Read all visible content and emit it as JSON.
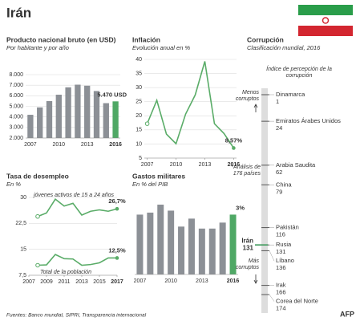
{
  "title": "Irán",
  "source": "Fuentes: Banco mundial, SIPRI, Transparencia internacional",
  "credit": "AFP",
  "chart_data": [
    {
      "type": "bar",
      "title": "Producto nacional bruto (en USD)",
      "subtitle": "Por habitante y por año",
      "categories": [
        "2007",
        null,
        null,
        "2010",
        null,
        null,
        "2013",
        null,
        null,
        "2016"
      ],
      "values": [
        4200,
        4900,
        5500,
        6100,
        6800,
        7050,
        6950,
        6450,
        5300,
        5470
      ],
      "value_labels": [
        null,
        null,
        null,
        null,
        null,
        null,
        null,
        null,
        null,
        "5.470 USD"
      ],
      "colors": [
        "#8c9096",
        "#8c9096",
        "#8c9096",
        "#8c9096",
        "#8c9096",
        "#8c9096",
        "#8c9096",
        "#8c9096",
        "#8c9096",
        "#4fa865"
      ],
      "ylim": [
        2000,
        8000
      ],
      "yticks": [
        {
          "value": 2000,
          "label": "2.000"
        },
        {
          "value": 3000,
          "label": "3.000"
        },
        {
          "value": 4000,
          "label": "4.000"
        },
        {
          "value": 5000,
          "label": "5.000"
        },
        {
          "value": 6000,
          "label": "6.000"
        },
        {
          "value": 7000,
          "label": "7.000"
        },
        {
          "value": 8000,
          "label": "8.000"
        }
      ],
      "grid": true
    },
    {
      "type": "line",
      "title": "Inflación",
      "subtitle": "Evolución anual en %",
      "x": [
        2007,
        2008,
        2009,
        2010,
        2011,
        2012,
        2013,
        2014,
        2015,
        2016
      ],
      "values": [
        17.2,
        25.5,
        13.5,
        10.1,
        20.6,
        27.4,
        39.3,
        17.2,
        13.7,
        8.57
      ],
      "value_labels": [
        null,
        null,
        null,
        null,
        null,
        null,
        null,
        null,
        null,
        "8,57%"
      ],
      "color": "#5aac68",
      "xlim": [
        2006.7,
        2016.3
      ],
      "xticks": [
        2007,
        2010,
        2013,
        2016
      ],
      "ylim": [
        5,
        40
      ],
      "yticks": [
        5,
        10,
        15,
        20,
        25,
        30,
        35,
        40
      ],
      "grid": true
    },
    {
      "type": "line",
      "title": "Tasa de desempleo",
      "subtitle": "En %",
      "x": [
        2008,
        2009,
        2010,
        2011,
        2012,
        2013,
        2014,
        2015,
        2016,
        2017
      ],
      "series": [
        {
          "name": "jóvenes  activos de 15 a 24 años",
          "color": "#5aac68",
          "values": [
            24.5,
            25.5,
            29.5,
            27.5,
            28.3,
            24.9,
            26.0,
            26.4,
            26.0,
            26.7
          ],
          "value_labels": [
            null,
            null,
            null,
            null,
            null,
            null,
            null,
            null,
            null,
            "26,7%"
          ]
        },
        {
          "name": "Total de la población",
          "color": "#5aac68",
          "values": [
            10.4,
            10.5,
            13.5,
            12.3,
            12.2,
            10.4,
            10.6,
            11.1,
            12.5,
            12.5
          ],
          "value_labels": [
            null,
            null,
            null,
            null,
            null,
            null,
            null,
            null,
            null,
            "12,5%"
          ]
        }
      ],
      "xlim": [
        2007,
        2017
      ],
      "xticks": [
        2007,
        2009,
        2011,
        2013,
        2015,
        2017
      ],
      "ylim": [
        7.5,
        30
      ],
      "yticks": [
        {
          "value": 7.5,
          "label": "7,5"
        },
        15,
        {
          "value": 22.5,
          "label": "22,5"
        },
        30
      ],
      "grid": true
    },
    {
      "type": "bar",
      "title": "Gastos militares",
      "subtitle": "En % del PIB",
      "categories": [
        "2007",
        null,
        null,
        "2010",
        null,
        null,
        "2013",
        null,
        null,
        "2016"
      ],
      "values": [
        3.0,
        3.1,
        3.5,
        3.2,
        2.4,
        2.8,
        2.3,
        2.3,
        2.6,
        3.0
      ],
      "value_labels": [
        null,
        null,
        null,
        null,
        null,
        null,
        null,
        null,
        null,
        "3%"
      ],
      "colors": [
        "#8c9096",
        "#8c9096",
        "#8c9096",
        "#8c9096",
        "#8c9096",
        "#8c9096",
        "#8c9096",
        "#8c9096",
        "#8c9096",
        "#4fa865"
      ],
      "ylim": [
        0,
        3.5
      ],
      "grid": false
    },
    {
      "type": "rank",
      "title": "Corrupción",
      "subtitle": "Clasificación mundial, 2016",
      "annotation": "Índice de percepción de la corrupción",
      "top_label": "Menos corruptos",
      "bottom_label": "Más corruptos",
      "note": "*Análisis de 176 países",
      "categories": [
        "Dinamarca",
        "Emiratos Árabes Unidos",
        "Arabia Saudita",
        "China",
        "Pakistán",
        "Rusia",
        "Líbano",
        "Irak",
        "Corea del Norte"
      ],
      "values": [
        1,
        24,
        62,
        79,
        116,
        131,
        136,
        166,
        174
      ],
      "highlight": {
        "name": "Irán",
        "value": 131
      },
      "color": "#3d9a5a",
      "ylim": [
        1,
        176
      ]
    }
  ]
}
